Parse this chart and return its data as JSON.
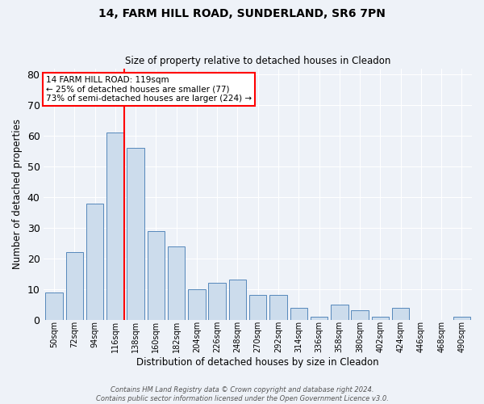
{
  "title_line1": "14, FARM HILL ROAD, SUNDERLAND, SR6 7PN",
  "title_line2": "Size of property relative to detached houses in Cleadon",
  "xlabel": "Distribution of detached houses by size in Cleadon",
  "ylabel": "Number of detached properties",
  "categories": [
    "50sqm",
    "72sqm",
    "94sqm",
    "116sqm",
    "138sqm",
    "160sqm",
    "182sqm",
    "204sqm",
    "226sqm",
    "248sqm",
    "270sqm",
    "292sqm",
    "314sqm",
    "336sqm",
    "358sqm",
    "380sqm",
    "402sqm",
    "424sqm",
    "446sqm",
    "468sqm",
    "490sqm"
  ],
  "values": [
    9,
    22,
    38,
    61,
    56,
    29,
    24,
    10,
    12,
    13,
    8,
    8,
    4,
    1,
    5,
    3,
    1,
    4,
    0,
    0,
    1
  ],
  "bar_color": "#ccdcec",
  "bar_edge_color": "#5588bb",
  "ylim": [
    0,
    82
  ],
  "yticks": [
    0,
    10,
    20,
    30,
    40,
    50,
    60,
    70,
    80
  ],
  "red_line_index": 3,
  "annotation_text": "14 FARM HILL ROAD: 119sqm\n← 25% of detached houses are smaller (77)\n73% of semi-detached houses are larger (224) →",
  "annotation_box_color": "white",
  "annotation_box_edge": "red",
  "footer_line1": "Contains HM Land Registry data © Crown copyright and database right 2024.",
  "footer_line2": "Contains public sector information licensed under the Open Government Licence v3.0.",
  "background_color": "#eef2f8",
  "grid_color": "white"
}
